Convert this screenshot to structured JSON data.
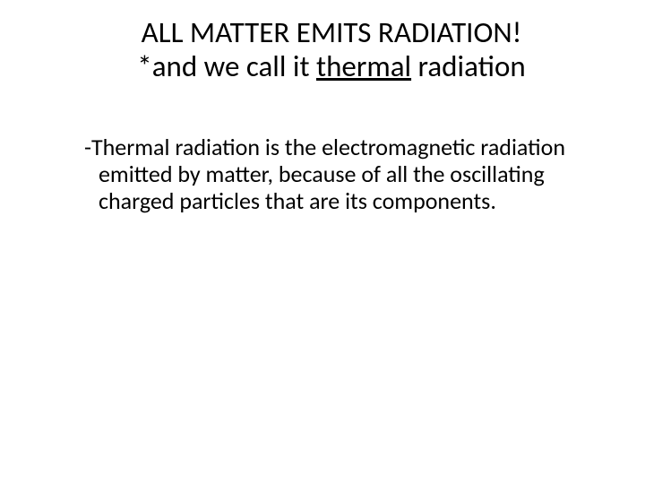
{
  "colors": {
    "background": "#ffffff",
    "text": "#000000"
  },
  "typography": {
    "family": "Calibri",
    "title_fontsize": 33,
    "body_fontsize": 26,
    "title_weight": 400,
    "body_weight": 400
  },
  "title": {
    "line1": "ALL MATTER EMITS RADIATION!",
    "line2_prefix": "*and we call it ",
    "line2_underlined": "thermal",
    "line2_suffix": " radiation"
  },
  "body": {
    "paragraph": "-Thermal radiation is the electromagnetic radiation emitted by matter, because of all the oscillating charged particles that are its components."
  }
}
